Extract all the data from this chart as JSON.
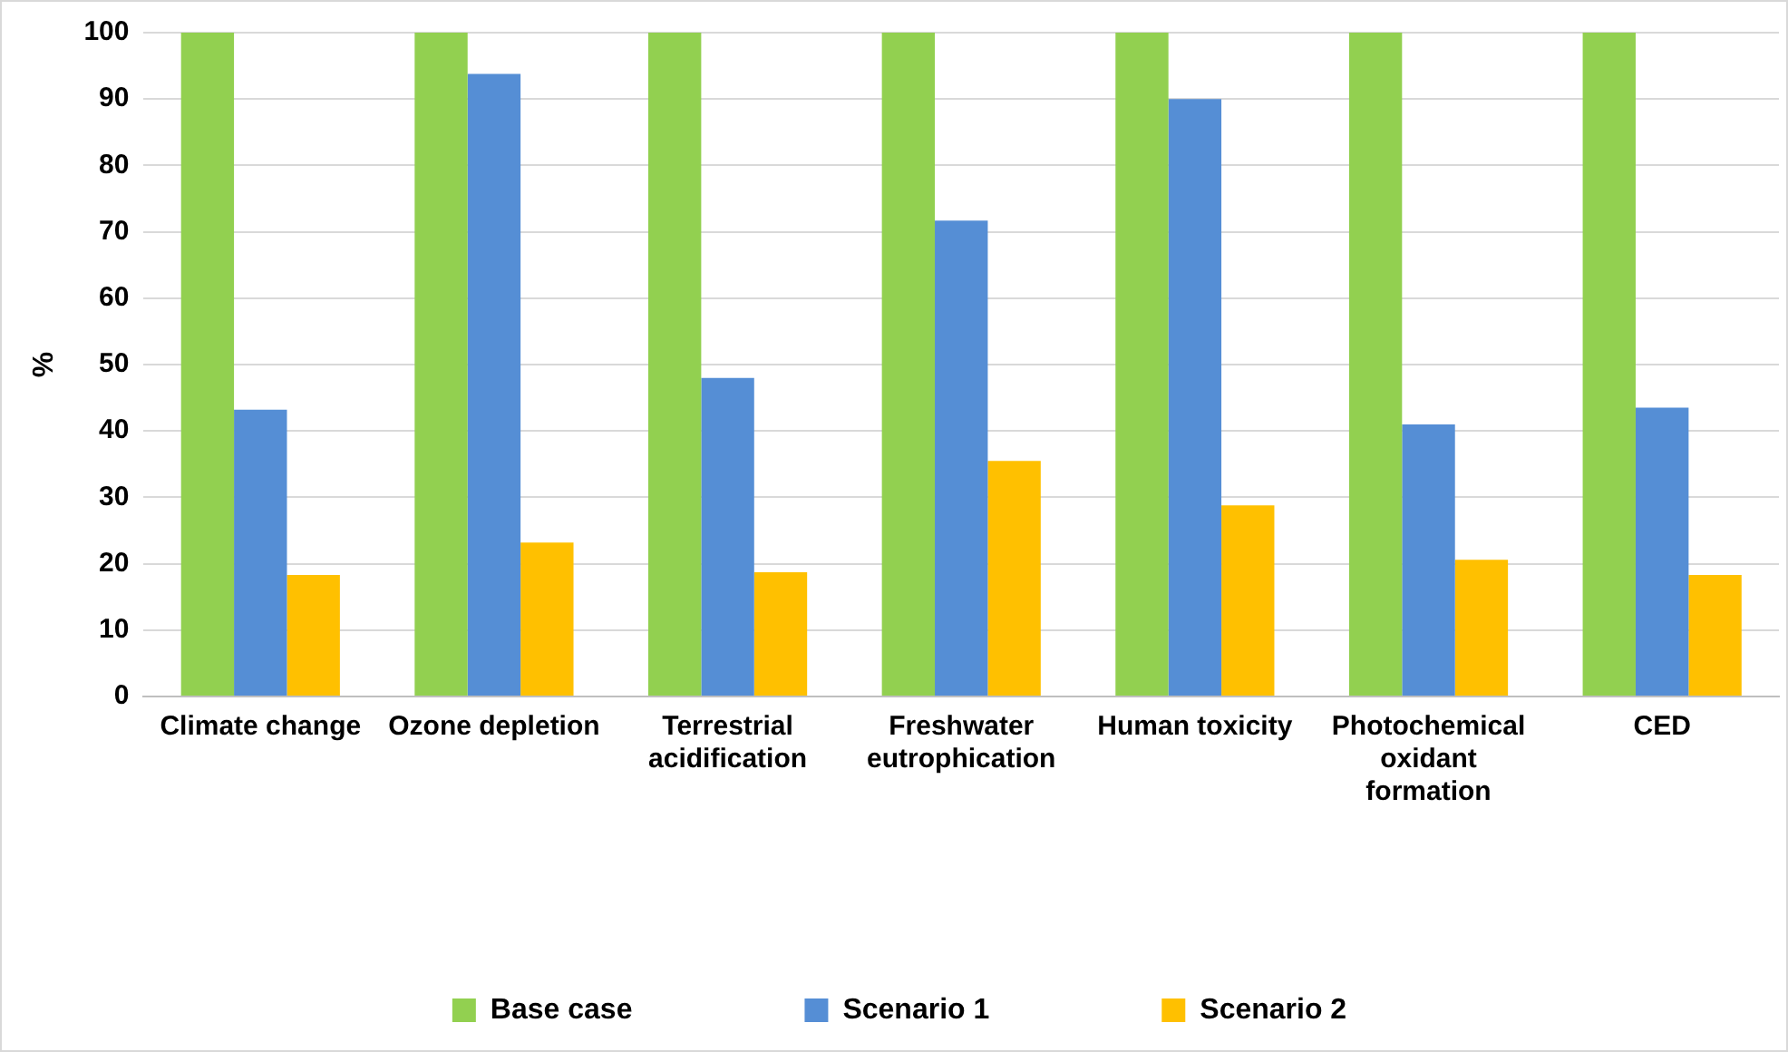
{
  "chart_data": {
    "type": "bar",
    "ylabel": "%",
    "categories": [
      "Climate change",
      "Ozone depletion",
      "Terrestrial acidification",
      "Freshwater eutrophication",
      "Human toxicity",
      "Photochemical oxidant formation",
      "CED"
    ],
    "series": [
      {
        "name": "Base case",
        "color": "#92d050",
        "values": [
          100,
          100,
          100,
          100,
          100,
          100,
          100
        ]
      },
      {
        "name": "Scenario 1",
        "color": "#558ed5",
        "values": [
          43.2,
          93.8,
          48,
          71.7,
          90,
          41,
          43.5
        ]
      },
      {
        "name": "Scenario 2",
        "color": "#ffc000",
        "values": [
          18.3,
          23.2,
          18.7,
          35.5,
          28.8,
          20.6,
          18.3
        ]
      }
    ],
    "ylim": [
      0,
      100
    ],
    "yticks": [
      0,
      10,
      20,
      30,
      40,
      50,
      60,
      70,
      80,
      90,
      100
    ],
    "grid": "y",
    "legend": "bottom"
  }
}
